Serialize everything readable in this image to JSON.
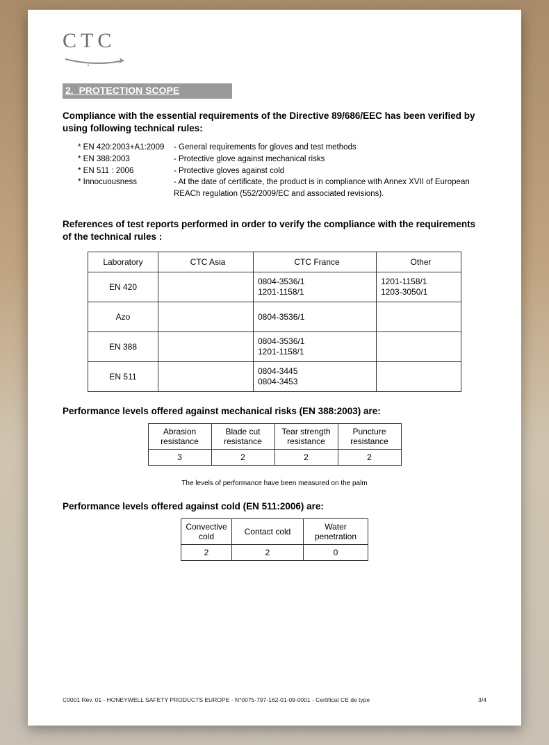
{
  "logo": {
    "text": "CTC"
  },
  "section": {
    "number": "2.",
    "title": "PROTECTION SCOPE"
  },
  "intro": "Compliance with the essential requirements of the Directive 89/686/EEC has been verified by using following technical rules:",
  "rules": [
    {
      "label": "* EN 420:2003+A1:2009",
      "desc": "- General requirements for gloves and test methods"
    },
    {
      "label": "* EN 388:2003",
      "desc": "- Protective glove against mechanical risks"
    },
    {
      "label": "* EN 511 : 2006",
      "desc": "- Protective gloves against cold"
    },
    {
      "label": "* Innocuousness",
      "desc": "- At the date of certificate, the product is in compliance with Annex XVII of European REACh regulation (552/2009/EC and associated revisions)."
    }
  ],
  "references_title": "References of test reports performed in order to verify the compliance with the requirements of the technical rules :",
  "test_table": {
    "headers": [
      "Laboratory",
      "CTC Asia",
      "CTC France",
      "Other"
    ],
    "rows": [
      {
        "lab": "EN 420",
        "asia": "",
        "france": "0804-3536/1\n1201-1158/1",
        "other": "1201-1158/1\n1203-3050/1"
      },
      {
        "lab": "Azo",
        "asia": "",
        "france": "0804-3536/1",
        "other": ""
      },
      {
        "lab": "EN 388",
        "asia": "",
        "france": "0804-3536/1\n1201-1158/1",
        "other": ""
      },
      {
        "lab": "EN 511",
        "asia": "",
        "france": "0804-3445\n0804-3453",
        "other": ""
      }
    ]
  },
  "mech_title": "Performance levels offered against mechanical risks (EN 388:2003) are:",
  "mech_table": {
    "headers": [
      "Abrasion resistance",
      "Blade cut resistance",
      "Tear strength resistance",
      "Puncture resistance"
    ],
    "values": [
      "3",
      "2",
      "2",
      "2"
    ]
  },
  "palm_note": "The levels of performance have been measured on the palm",
  "cold_title": "Performance levels offered against cold (EN 511:2006) are:",
  "cold_table": {
    "headers": [
      "Convective cold",
      "Contact cold",
      "Water penetration"
    ],
    "values": [
      "2",
      "2",
      "0"
    ]
  },
  "footer": {
    "left": "C0001 Rév. 01 - HONEYWELL SAFETY PRODUCTS EUROPE - N°0075-797-162-01-09-0001 - Certificat CE de type",
    "right": "3/4"
  },
  "colors": {
    "section_bar_bg": "#9a9a9a",
    "section_bar_text": "#ffffff",
    "page_bg": "#ffffff",
    "text": "#000000"
  }
}
